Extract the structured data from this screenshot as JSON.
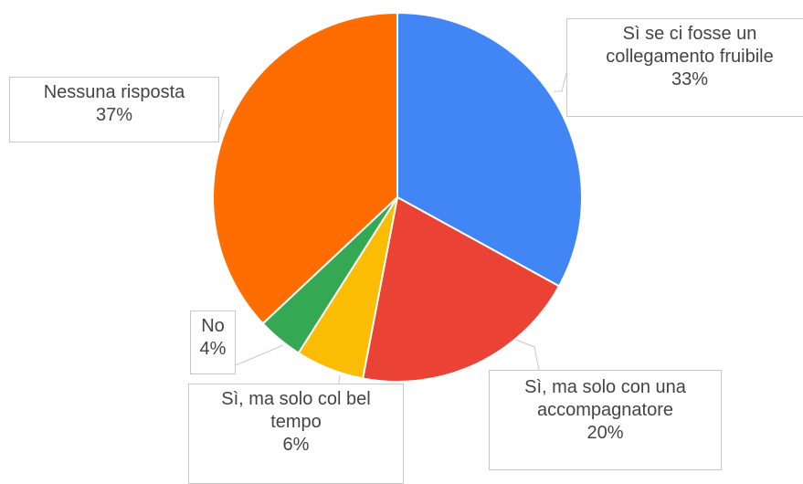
{
  "chart_data": {
    "type": "pie",
    "categories": [
      "Sì se ci fosse un collegamento fruibile",
      "Sì, ma solo con una accompagnatore",
      "Sì, ma solo col bel tempo",
      "No",
      "Nessuna risposta"
    ],
    "values": [
      33,
      20,
      6,
      4,
      37
    ],
    "value_labels": [
      "33%",
      "20%",
      "6%",
      "4%",
      "37%"
    ],
    "colors": [
      "#4285f4",
      "#ea4335",
      "#fbbc04",
      "#34a853",
      "#ff6d01"
    ]
  }
}
